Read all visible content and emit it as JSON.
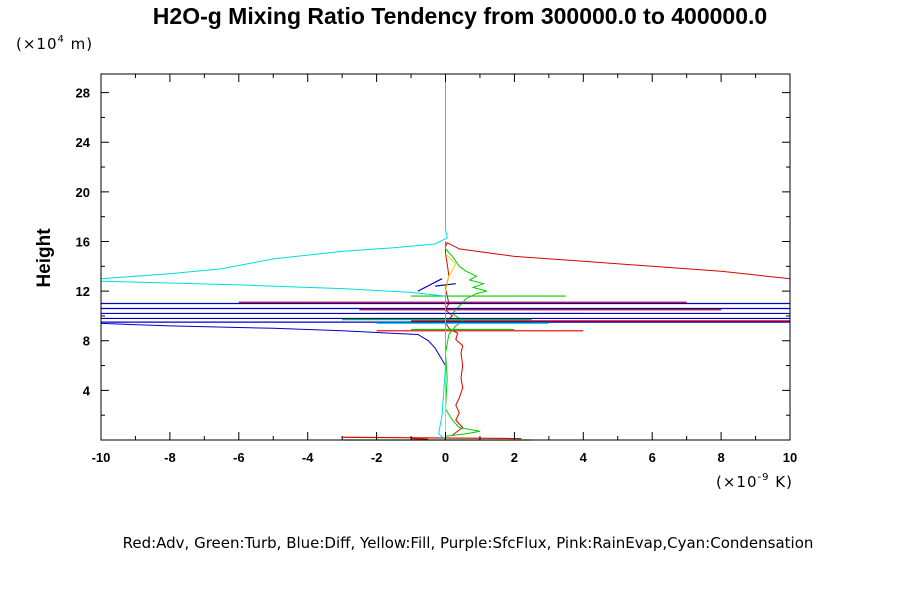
{
  "chart_data": {
    "type": "line",
    "title": "H2O-g Mixing Ratio Tendency from 300000.0 to 400000.0",
    "ylabel": "Height",
    "xlabel": "",
    "x_unit": {
      "prefix": "(×10",
      "exp": "-9",
      "suffix": " K)"
    },
    "y_unit": {
      "prefix": "(×10",
      "exp": "4",
      "suffix": " m)"
    },
    "xlim": [
      -10,
      10
    ],
    "ylim": [
      0,
      29.5
    ],
    "x_ticks": [
      -10,
      -8,
      -6,
      -4,
      -2,
      0,
      2,
      4,
      6,
      8,
      10
    ],
    "y_ticks": [
      4,
      8,
      12,
      16,
      20,
      24,
      28
    ],
    "legend_text": "Red:Adv, Green:Turb, Blue:Diff, Yellow:Fill, Purple:SfcFlux, Pink:RainEvap,Cyan:Condensation",
    "series": [
      {
        "name": "Adv",
        "color": "#dd0000",
        "points": [
          [
            0.2,
            0.4
          ],
          [
            0.5,
            1.0
          ],
          [
            0.3,
            1.6
          ],
          [
            0.4,
            2.2
          ],
          [
            0.3,
            2.8
          ],
          [
            0.4,
            3.4
          ],
          [
            0.5,
            4.2
          ],
          [
            0.45,
            5.0
          ],
          [
            0.5,
            6.0
          ],
          [
            0.45,
            7.0
          ],
          [
            0.5,
            7.6
          ],
          [
            0.3,
            8.1
          ],
          [
            0.35,
            8.6
          ],
          [
            0.1,
            9.0
          ],
          [
            0.0,
            9.5
          ],
          [
            0.2,
            10.0
          ],
          [
            0.0,
            10.5
          ],
          [
            0.1,
            11.0
          ],
          [
            0.0,
            12.2
          ],
          [
            0.1,
            13.2
          ],
          [
            0.05,
            14.2
          ],
          [
            0.0,
            15.0
          ],
          [
            0.0,
            15.6
          ],
          [
            0.05,
            15.9
          ],
          [
            0.4,
            15.4
          ],
          [
            2.0,
            14.8
          ],
          [
            4.0,
            14.4
          ],
          [
            6.0,
            14.0
          ],
          [
            8.0,
            13.6
          ],
          [
            10.0,
            13.0
          ]
        ],
        "bands": [
          [
            -0.5,
            0.05
          ],
          [
            -1.0,
            0.12
          ],
          [
            -3.0,
            0.22
          ],
          [
            2.2,
            0.12
          ],
          [
            -6.0,
            11.1
          ],
          [
            7.0,
            11.1
          ],
          [
            -2.5,
            10.5
          ],
          [
            8.0,
            10.5
          ],
          [
            -1.0,
            9.6
          ],
          [
            10.0,
            9.6
          ],
          [
            -2.0,
            8.8
          ],
          [
            4.0,
            8.8
          ]
        ]
      },
      {
        "name": "Turb",
        "color": "#00cc00",
        "points": [
          [
            0.0,
            0.3
          ],
          [
            0.6,
            0.5
          ],
          [
            1.0,
            0.7
          ],
          [
            0.4,
            1.0
          ],
          [
            0.2,
            1.6
          ],
          [
            0.0,
            2.5
          ],
          [
            0.05,
            5.0
          ],
          [
            0.0,
            7.0
          ],
          [
            0.1,
            8.5
          ],
          [
            0.3,
            9.2
          ],
          [
            0.5,
            9.6
          ],
          [
            0.2,
            10.2
          ],
          [
            0.4,
            10.8
          ],
          [
            0.6,
            11.4
          ],
          [
            0.9,
            11.8
          ],
          [
            1.2,
            12.0
          ],
          [
            0.8,
            12.3
          ],
          [
            1.1,
            12.6
          ],
          [
            0.7,
            12.9
          ],
          [
            0.9,
            13.2
          ],
          [
            0.6,
            13.6
          ],
          [
            0.4,
            14.0
          ],
          [
            0.2,
            14.8
          ],
          [
            0.0,
            15.4
          ],
          [
            0.0,
            16.0
          ]
        ],
        "bands": [
          [
            -3.0,
            0.0
          ],
          [
            2.5,
            0.0
          ],
          [
            -1.0,
            11.6
          ],
          [
            3.5,
            11.6
          ],
          [
            -2.0,
            10.2
          ],
          [
            4.0,
            10.2
          ],
          [
            -3.0,
            9.7
          ],
          [
            2.5,
            9.7
          ],
          [
            -1.0,
            8.9
          ],
          [
            2.0,
            8.9
          ]
        ]
      },
      {
        "name": "Diff",
        "color": "#0000cc",
        "points": [
          [
            0.0,
            0.5
          ],
          [
            0.0,
            6.0
          ],
          [
            -0.3,
            7.4
          ],
          [
            -0.5,
            8.0
          ],
          [
            -0.8,
            8.5
          ],
          [
            -3.0,
            8.8
          ],
          [
            -5.0,
            9.0
          ],
          [
            -8.0,
            9.2
          ],
          [
            -10.0,
            9.4
          ]
        ],
        "bands": [
          [
            -10.0,
            11.0
          ],
          [
            10.0,
            11.0
          ],
          [
            -10.0,
            10.6
          ],
          [
            10.0,
            10.6
          ],
          [
            -10.0,
            10.2
          ],
          [
            10.0,
            10.2
          ],
          [
            -10.0,
            9.8
          ],
          [
            10.0,
            9.8
          ],
          [
            -10.0,
            9.5
          ],
          [
            10.0,
            9.5
          ],
          [
            -0.8,
            12.0
          ],
          [
            -0.1,
            13.0
          ],
          [
            -0.3,
            12.4
          ],
          [
            0.3,
            12.6
          ]
        ]
      },
      {
        "name": "Fill",
        "color": "#dddd00",
        "points": [
          [
            0.0,
            0.0
          ],
          [
            0.0,
            12.0
          ],
          [
            0.1,
            13.2
          ],
          [
            0.3,
            14.2
          ],
          [
            0.0,
            15.0
          ]
        ],
        "bands": []
      },
      {
        "name": "Condensation",
        "color": "#00dddd",
        "points": [
          [
            0.0,
            29.5
          ],
          [
            0.0,
            20.0
          ],
          [
            0.0,
            17.0
          ],
          [
            0.05,
            16.3
          ],
          [
            -0.3,
            15.8
          ],
          [
            -1.5,
            15.5
          ],
          [
            -3.0,
            15.2
          ],
          [
            -5.0,
            14.6
          ],
          [
            -6.5,
            13.8
          ],
          [
            -8.0,
            13.4
          ],
          [
            -10.0,
            13.0
          ]
        ],
        "points2": [
          [
            -10.0,
            12.8
          ],
          [
            -6.0,
            12.5
          ],
          [
            -3.0,
            12.2
          ],
          [
            -1.0,
            11.9
          ],
          [
            0.0,
            11.6
          ],
          [
            0.0,
            9.0
          ],
          [
            0.0,
            6.0
          ],
          [
            -0.1,
            2.0
          ],
          [
            -0.2,
            0.5
          ],
          [
            0.0,
            0.0
          ]
        ],
        "bands": [
          [
            -2.0,
            9.4
          ],
          [
            3.0,
            9.4
          ]
        ]
      }
    ]
  }
}
